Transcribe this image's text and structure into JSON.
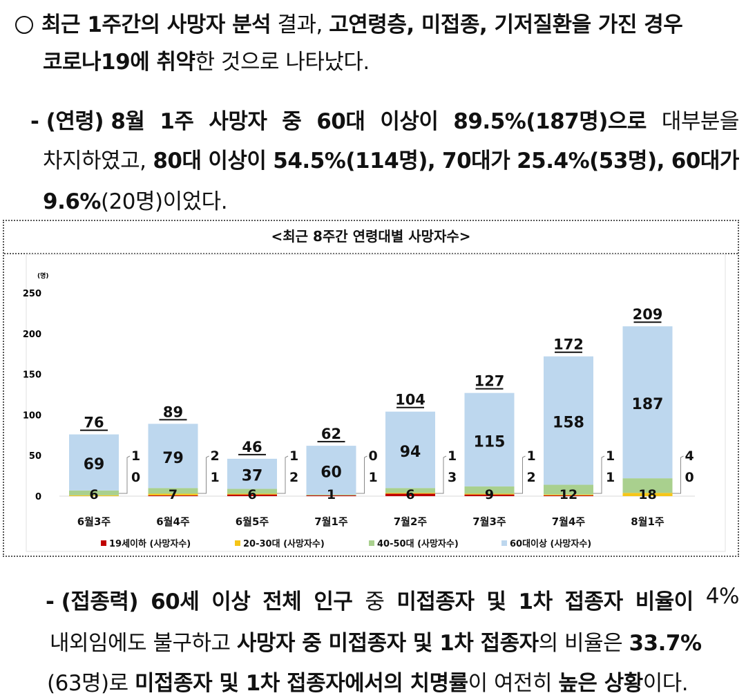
{
  "p1": {
    "bullet": "○",
    "line1": [
      "최근 1주간의 사망자 분석",
      " 결과, ",
      "고연령층, 미접종, 기저질환을 가진 경우"
    ],
    "line2": [
      "코로나19에 취약",
      "한 것으로 나타났다."
    ]
  },
  "p2": {
    "line1": [
      "- (연령) 8월",
      "1주",
      "사망자",
      "중",
      "60대",
      "이상이",
      "89.5%(187명)으로",
      "대부분을"
    ],
    "line2": [
      "차지하였고,",
      "80대",
      "이상이",
      "54.5%(114명),",
      "70대가",
      "25.4%(53명),",
      "60대가"
    ],
    "line3": [
      "9.6%",
      "(20명)이었다."
    ]
  },
  "p3": {
    "line1": [
      "- (접종력)",
      "60세",
      "이상",
      "전체",
      "인구",
      "중",
      "미접종자",
      "및",
      "1차",
      "접종자",
      "비율이",
      "4%"
    ],
    "line2": [
      "내외임에도 불구하고 ",
      "사망자 중 미접종자 및 1차 접종자",
      "의 비율은 ",
      "33.7%"
    ],
    "line3": [
      "(63명)로 ",
      "미접종자 및 1차 접종자에서의 치명률",
      "이 여전히 ",
      "높은 상황",
      "이다."
    ]
  },
  "chart_data": {
    "type": "bar",
    "stacked": true,
    "title": "<최근 8주간 연령대별 사망자수>",
    "unit": "(명)",
    "ylim": [
      0,
      250
    ],
    "yticks": [
      0,
      50,
      100,
      150,
      200,
      250
    ],
    "grid": false,
    "categories": [
      "6월3주",
      "6월4주",
      "6월5주",
      "7월1주",
      "7월2주",
      "7월3주",
      "7월4주",
      "8월1주"
    ],
    "totals": [
      76,
      89,
      46,
      62,
      104,
      127,
      172,
      209
    ],
    "series": [
      {
        "name": "19세이하 (사망자수)",
        "color": "#c00000",
        "values": [
          0,
          1,
          2,
          1,
          3,
          2,
          1,
          0
        ]
      },
      {
        "name": "20-30대 (사망자수)",
        "color": "#f5c518",
        "values": [
          1,
          2,
          1,
          0,
          1,
          1,
          1,
          4
        ]
      },
      {
        "name": "40-50대 (사망자수)",
        "color": "#a9d08e",
        "values": [
          6,
          7,
          6,
          1,
          6,
          9,
          12,
          18
        ]
      },
      {
        "name": "60대이상 (사망자수)",
        "color": "#bdd7ee",
        "values": [
          69,
          79,
          37,
          60,
          94,
          115,
          158,
          187
        ]
      }
    ],
    "legend_position": "bottom"
  }
}
